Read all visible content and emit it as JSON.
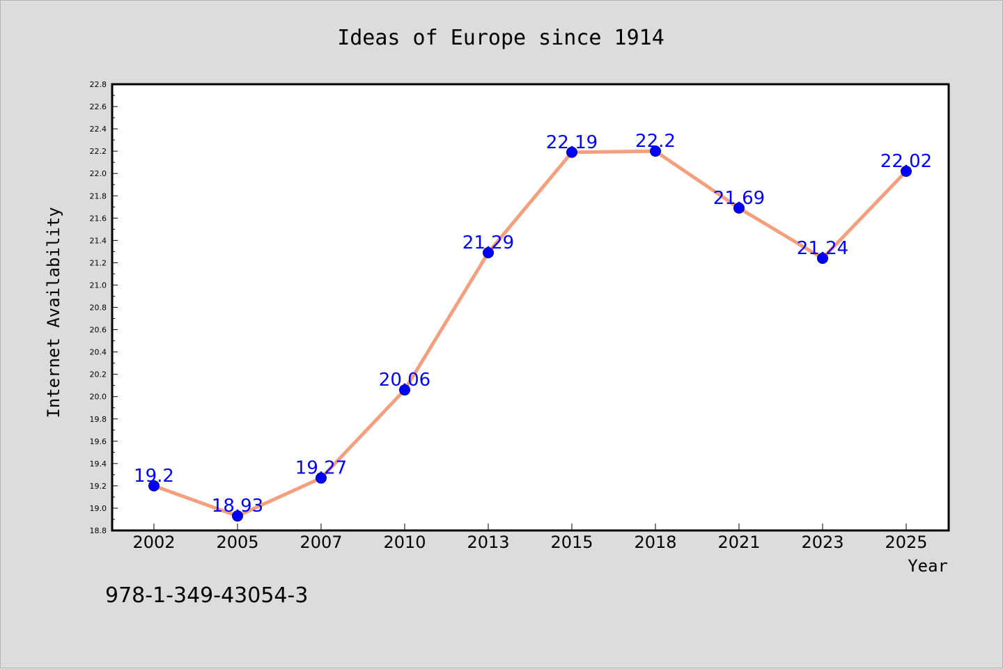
{
  "chart_data": {
    "type": "line",
    "title": "Ideas of Europe since 1914",
    "xlabel": "Year",
    "ylabel": "Internet Availability",
    "categories": [
      "2002",
      "2005",
      "2007",
      "2010",
      "2013",
      "2015",
      "2018",
      "2021",
      "2023",
      "2025"
    ],
    "values": [
      19.2,
      18.93,
      19.27,
      20.06,
      21.29,
      22.19,
      22.2,
      21.69,
      21.24,
      22.02
    ],
    "data_labels": [
      "19.2",
      "18.93",
      "19.27",
      "20.06",
      "21.29",
      "22.19",
      "22.2",
      "21.69",
      "21.24",
      "22.02"
    ],
    "yticks": [
      "18.8",
      "19.0",
      "19.2",
      "19.4",
      "19.6",
      "19.8",
      "20.0",
      "20.2",
      "20.4",
      "20.6",
      "20.8",
      "21.0",
      "21.2",
      "21.4",
      "21.6",
      "21.8",
      "22.0",
      "22.2",
      "22.4",
      "22.6",
      "22.8"
    ],
    "ylim": [
      18.8,
      22.8
    ],
    "grid": false,
    "legend": "none",
    "line_color": "#f4a07e",
    "marker_color": "#0000ff",
    "label_color": "#0000ff"
  },
  "footer": {
    "isbn": "978-1-349-43054-3"
  }
}
